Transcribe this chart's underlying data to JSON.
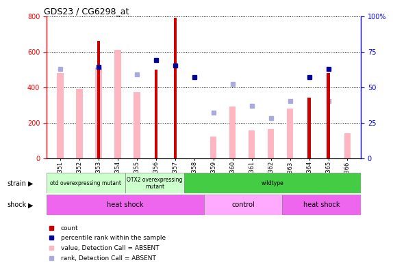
{
  "title": "GDS23 / CG6298_at",
  "samples": [
    "GSM1351",
    "GSM1352",
    "GSM1353",
    "GSM1354",
    "GSM1355",
    "GSM1356",
    "GSM1357",
    "GSM1358",
    "GSM1359",
    "GSM1360",
    "GSM1361",
    "GSM1362",
    "GSM1363",
    "GSM1364",
    "GSM1365",
    "GSM1366"
  ],
  "count_values": [
    null,
    null,
    660,
    null,
    null,
    500,
    790,
    null,
    null,
    null,
    null,
    null,
    null,
    340,
    480,
    null
  ],
  "percentile_rank": [
    null,
    null,
    64,
    null,
    null,
    69,
    65,
    57,
    null,
    null,
    null,
    null,
    null,
    57,
    63,
    null
  ],
  "absent_value": [
    480,
    390,
    510,
    610,
    370,
    null,
    null,
    null,
    120,
    290,
    155,
    165,
    280,
    null,
    null,
    140
  ],
  "absent_rank": [
    63,
    null,
    null,
    null,
    59,
    null,
    null,
    null,
    32,
    52,
    37,
    28,
    40,
    null,
    40,
    null
  ],
  "ylim_left": [
    0,
    800
  ],
  "ylim_right": [
    0,
    100
  ],
  "left_ticks": [
    0,
    200,
    400,
    600,
    800
  ],
  "right_ticks": [
    0,
    25,
    50,
    75,
    100
  ],
  "count_color": "#CC0000",
  "percentile_color": "#000099",
  "absent_value_color": "#FFB6C1",
  "absent_rank_color": "#AAAADD",
  "strain_defs": [
    {
      "start": 0,
      "end": 4,
      "color": "#CCFFCC",
      "label": "otd overexpressing mutant"
    },
    {
      "start": 4,
      "end": 7,
      "color": "#CCFFCC",
      "label": "OTX2 overexpressing\nmutant"
    },
    {
      "start": 7,
      "end": 16,
      "color": "#44CC44",
      "label": "wildtype"
    }
  ],
  "shock_defs": [
    {
      "start": 0,
      "end": 8,
      "color": "#EE66EE",
      "label": "heat shock"
    },
    {
      "start": 8,
      "end": 12,
      "color": "#FFAAFF",
      "label": "control"
    },
    {
      "start": 12,
      "end": 16,
      "color": "#EE66EE",
      "label": "heat shock"
    }
  ]
}
